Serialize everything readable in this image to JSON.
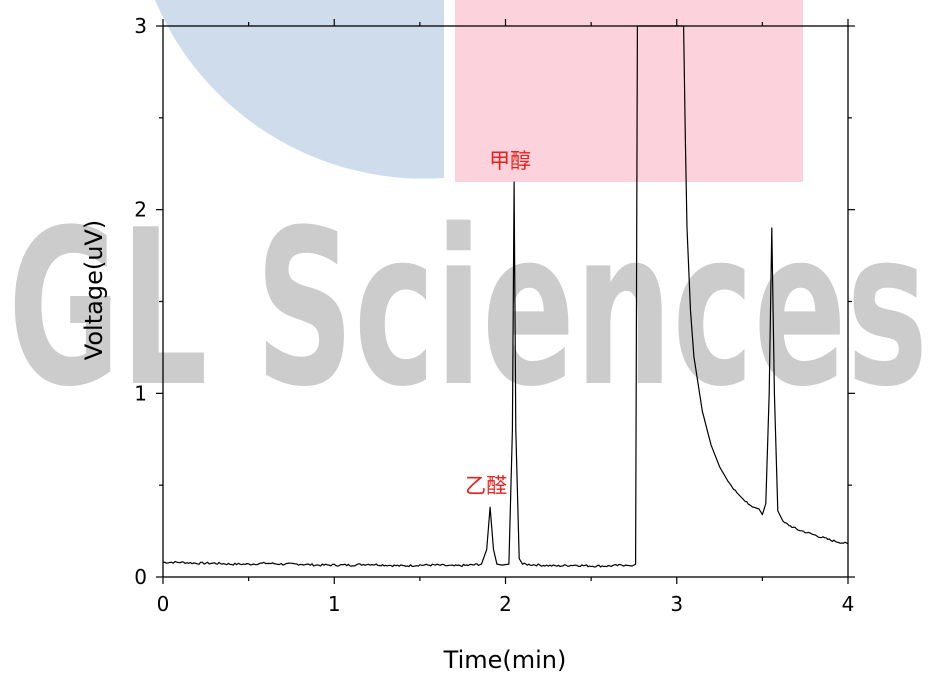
{
  "watermark": {
    "text": "GL Sciences",
    "color": "#cccccc",
    "blue": "#cfdcec",
    "pink": "#fcd3dc"
  },
  "colors": {
    "trace": "#000000",
    "annotation": "#e8211c",
    "axis": "#000000"
  },
  "chart_data": {
    "type": "line",
    "title": "",
    "xlabel": "Time(min)",
    "ylabel": "Voltage(uV)",
    "xlim": [
      0,
      4
    ],
    "ylim": [
      0,
      3
    ],
    "xticks": [
      0,
      1,
      2,
      3,
      4
    ],
    "yticks": [
      0,
      1,
      2,
      3
    ],
    "grid": false,
    "legend": "none",
    "series": [
      {
        "x": [
          0.0,
          0.1,
          0.2,
          0.3,
          0.4,
          0.5,
          0.6,
          0.7,
          0.8,
          0.9,
          1.0,
          1.1,
          1.2,
          1.3,
          1.4,
          1.5,
          1.6,
          1.7,
          1.8,
          1.86,
          1.89,
          1.91,
          1.93,
          1.95,
          1.98,
          2.02,
          2.04,
          2.05,
          2.06,
          2.08,
          2.1,
          2.2,
          2.3,
          2.4,
          2.5,
          2.6,
          2.7,
          2.74,
          2.76,
          2.77,
          2.8,
          3.0,
          3.04,
          3.05,
          3.06,
          3.08,
          3.1,
          3.15,
          3.2,
          3.25,
          3.3,
          3.35,
          3.4,
          3.45,
          3.48,
          3.5,
          3.52,
          3.54,
          3.555,
          3.57,
          3.59,
          3.62,
          3.7,
          3.8,
          3.9,
          4.0
        ],
        "y": [
          0.08,
          0.08,
          0.075,
          0.075,
          0.07,
          0.07,
          0.075,
          0.07,
          0.07,
          0.065,
          0.065,
          0.065,
          0.07,
          0.065,
          0.06,
          0.065,
          0.065,
          0.06,
          0.065,
          0.07,
          0.15,
          0.38,
          0.15,
          0.07,
          0.065,
          0.07,
          0.8,
          2.15,
          0.8,
          0.1,
          0.07,
          0.065,
          0.06,
          0.065,
          0.06,
          0.06,
          0.065,
          0.06,
          0.07,
          3.0,
          3.0,
          3.0,
          3.0,
          2.4,
          1.9,
          1.45,
          1.2,
          0.9,
          0.72,
          0.6,
          0.52,
          0.46,
          0.41,
          0.38,
          0.37,
          0.34,
          0.4,
          1.0,
          1.9,
          1.0,
          0.36,
          0.3,
          0.26,
          0.23,
          0.2,
          0.18
        ]
      }
    ],
    "annotations": [
      {
        "text": "乙醛",
        "x": 1.91,
        "y": 0.38
      },
      {
        "text": "甲醇",
        "x": 2.05,
        "y": 2.15
      }
    ]
  }
}
